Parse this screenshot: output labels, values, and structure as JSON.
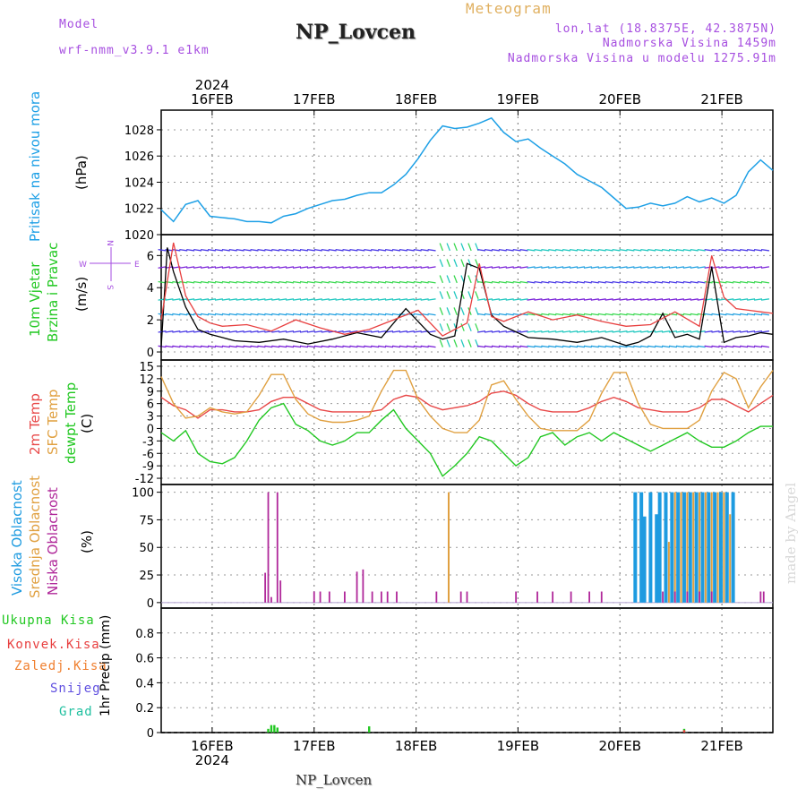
{
  "header": {
    "model_label": "Model",
    "model_name": "wrf-nmm_v3.9.1  e1km",
    "title": "NP_Lovcen",
    "meteogram": "Meteogram",
    "lonlat": "lon,lat (18.8375E, 42.3875N)",
    "elevation": "Nadmorska Visina 1459m",
    "model_elevation": "Nadmorska Visina u modelu 1275.91m",
    "footer": "NP_Lovcen",
    "watermark": "made by Angel"
  },
  "time_axis": {
    "year": "2024",
    "days": [
      "16FEB",
      "17FEB",
      "18FEB",
      "19FEB",
      "20FEB",
      "21FEB"
    ],
    "day_fractions": [
      0.0833,
      0.25,
      0.4167,
      0.5833,
      0.75,
      0.9167
    ]
  },
  "panels": {
    "pressure": {
      "ylabel": "Pritisak na nivou mora",
      "unit": "(hPa)"
    },
    "wind": {
      "ylabel1": "10m Vjetar",
      "ylabel2": "Brzina i Pravac",
      "unit": "(m/s)",
      "compass_n": "N",
      "compass_s": "S",
      "compass_e": "E",
      "compass_w": "W"
    },
    "temp": {
      "label_2m": "2m Temp",
      "label_sfc": "SFC Temp",
      "label_dew": "dewpt Temp",
      "unit": "(C)"
    },
    "cloud": {
      "label_high": "Visoka Oblacnost",
      "label_mid": "Srednja Oblacnost",
      "label_low": "Niska Oblacnost",
      "unit": "(%)"
    },
    "precip": {
      "label_total": "Ukupna Kisa",
      "label_conv": "Konvek.Kisa",
      "label_frz": "Zaledj.Kisa",
      "label_snow": "Snijeg",
      "label_grad": "Grad",
      "unit": "1hr Precip (mm)"
    }
  },
  "colors": {
    "pressure": "#1ea0e6",
    "wind_speed": "#000000",
    "wind_gust": "#e84040",
    "t2m": "#e84848",
    "tsfc": "#e0a040",
    "dew": "#22c822",
    "high": "#1e9be0",
    "mid": "#e0a040",
    "low": "#b0289a",
    "total": "#22c822",
    "conv": "#e84040",
    "frz": "#f08030",
    "snow": "#6050e0",
    "grad": "#20c0a0"
  },
  "chart_data": [
    {
      "type": "line",
      "name": "pressure",
      "ylim": [
        1020,
        1029.5
      ],
      "yticks": [
        1020,
        1022,
        1024,
        1026,
        1028
      ],
      "grid": true,
      "x": [
        0.0,
        0.02,
        0.04,
        0.06,
        0.08,
        0.1,
        0.12,
        0.14,
        0.16,
        0.18,
        0.2,
        0.22,
        0.24,
        0.26,
        0.28,
        0.3,
        0.32,
        0.34,
        0.36,
        0.38,
        0.4,
        0.42,
        0.44,
        0.46,
        0.48,
        0.5,
        0.52,
        0.54,
        0.56,
        0.58,
        0.6,
        0.62,
        0.64,
        0.66,
        0.68,
        0.7,
        0.72,
        0.74,
        0.76,
        0.78,
        0.8,
        0.82,
        0.84,
        0.86,
        0.88,
        0.9,
        0.92,
        0.94,
        0.96,
        0.98,
        1.0
      ],
      "values": [
        1021.9,
        1021.0,
        1022.3,
        1022.6,
        1021.4,
        1021.3,
        1021.2,
        1021.0,
        1021.0,
        1020.9,
        1021.4,
        1021.6,
        1022.0,
        1022.3,
        1022.6,
        1022.7,
        1023.0,
        1023.2,
        1023.2,
        1023.8,
        1024.6,
        1025.8,
        1027.2,
        1028.3,
        1028.1,
        1028.2,
        1028.5,
        1028.9,
        1027.8,
        1027.1,
        1027.3,
        1026.6,
        1026.0,
        1025.4,
        1024.6,
        1024.1,
        1023.6,
        1022.8,
        1022.0,
        1022.1,
        1022.4,
        1022.2,
        1022.4,
        1022.9,
        1022.5,
        1022.8,
        1022.4,
        1023.0,
        1024.8,
        1025.7,
        1024.9
      ]
    },
    {
      "type": "line",
      "name": "wind",
      "ylim": [
        -0.5,
        7.3
      ],
      "yticks": [
        0,
        2,
        4,
        6
      ],
      "grid": true,
      "series": [
        {
          "name": "speed",
          "x": [
            0.0,
            0.01,
            0.02,
            0.04,
            0.06,
            0.08,
            0.1,
            0.12,
            0.16,
            0.2,
            0.24,
            0.28,
            0.32,
            0.36,
            0.4,
            0.44,
            0.46,
            0.48,
            0.5,
            0.52,
            0.54,
            0.56,
            0.6,
            0.64,
            0.68,
            0.72,
            0.76,
            0.78,
            0.8,
            0.82,
            0.84,
            0.86,
            0.88,
            0.9,
            0.92,
            0.94,
            0.96,
            0.98,
            1.0
          ],
          "values": [
            0.3,
            6.5,
            5.0,
            2.8,
            1.4,
            1.1,
            0.9,
            0.7,
            0.6,
            0.8,
            0.5,
            0.8,
            1.2,
            0.9,
            2.7,
            1.1,
            0.8,
            1.0,
            5.5,
            5.2,
            2.3,
            1.6,
            0.9,
            0.8,
            0.6,
            0.9,
            0.4,
            0.6,
            1.0,
            2.4,
            0.9,
            1.1,
            0.8,
            5.3,
            0.6,
            0.9,
            1.0,
            1.2,
            1.1
          ]
        },
        {
          "name": "gust",
          "x": [
            0.0,
            0.02,
            0.04,
            0.06,
            0.08,
            0.1,
            0.14,
            0.18,
            0.22,
            0.26,
            0.3,
            0.34,
            0.38,
            0.42,
            0.46,
            0.5,
            0.52,
            0.54,
            0.56,
            0.6,
            0.64,
            0.68,
            0.72,
            0.76,
            0.8,
            0.84,
            0.88,
            0.9,
            0.92,
            0.94,
            0.96,
            0.98,
            1.0
          ],
          "values": [
            2.0,
            6.8,
            3.5,
            2.2,
            1.8,
            1.6,
            1.7,
            1.3,
            2.0,
            1.5,
            1.1,
            1.4,
            2.0,
            2.6,
            1.0,
            1.8,
            5.5,
            2.2,
            1.9,
            2.5,
            2.0,
            2.3,
            1.9,
            1.6,
            1.7,
            2.5,
            1.6,
            6.0,
            3.4,
            2.7,
            2.6,
            2.5,
            2.4
          ]
        }
      ]
    },
    {
      "type": "line",
      "name": "temperature",
      "ylim": [
        -13.5,
        16.5
      ],
      "yticks": [
        -12,
        -9,
        -6,
        -3,
        0,
        3,
        6,
        9,
        12,
        15
      ],
      "grid": true,
      "series": [
        {
          "name": "2m Temp",
          "x": [
            0.0,
            0.02,
            0.04,
            0.06,
            0.08,
            0.1,
            0.12,
            0.14,
            0.16,
            0.18,
            0.2,
            0.22,
            0.24,
            0.26,
            0.28,
            0.3,
            0.32,
            0.34,
            0.36,
            0.38,
            0.4,
            0.42,
            0.44,
            0.46,
            0.48,
            0.5,
            0.52,
            0.54,
            0.56,
            0.58,
            0.6,
            0.62,
            0.64,
            0.66,
            0.68,
            0.7,
            0.72,
            0.74,
            0.76,
            0.78,
            0.8,
            0.82,
            0.84,
            0.86,
            0.88,
            0.9,
            0.92,
            0.94,
            0.96,
            0.98,
            1.0
          ],
          "values": [
            7.5,
            5.5,
            4.5,
            2.5,
            4.5,
            4.5,
            4.0,
            4.0,
            4.5,
            6.5,
            7.5,
            7.5,
            6.0,
            4.5,
            4.0,
            4.0,
            4.0,
            4.0,
            4.5,
            7.0,
            8.0,
            7.5,
            5.5,
            4.5,
            5.0,
            5.5,
            6.5,
            8.5,
            9.0,
            8.0,
            6.0,
            4.5,
            4.0,
            4.0,
            4.0,
            5.0,
            6.5,
            7.5,
            6.5,
            5.0,
            4.5,
            4.0,
            4.0,
            4.0,
            5.0,
            7.0,
            7.0,
            5.5,
            4.0,
            6.0,
            8.0
          ]
        },
        {
          "name": "SFC Temp",
          "x": [
            0.0,
            0.02,
            0.04,
            0.06,
            0.08,
            0.1,
            0.12,
            0.14,
            0.16,
            0.18,
            0.2,
            0.22,
            0.24,
            0.26,
            0.28,
            0.3,
            0.32,
            0.34,
            0.36,
            0.38,
            0.4,
            0.42,
            0.44,
            0.46,
            0.48,
            0.5,
            0.52,
            0.54,
            0.56,
            0.58,
            0.6,
            0.62,
            0.64,
            0.66,
            0.68,
            0.7,
            0.72,
            0.74,
            0.76,
            0.78,
            0.8,
            0.82,
            0.84,
            0.86,
            0.88,
            0.9,
            0.92,
            0.94,
            0.96,
            0.98,
            1.0
          ],
          "values": [
            12.5,
            6.0,
            2.5,
            3.0,
            5.0,
            4.0,
            3.5,
            4.0,
            8.0,
            13.0,
            13.0,
            7.0,
            3.5,
            2.0,
            1.5,
            1.5,
            2.0,
            3.0,
            9.0,
            14.0,
            14.0,
            7.0,
            3.0,
            0.0,
            -1.0,
            -1.0,
            2.0,
            10.5,
            11.5,
            7.0,
            3.0,
            0.0,
            -0.5,
            -0.5,
            -0.5,
            2.0,
            8.5,
            13.5,
            13.5,
            6.0,
            1.0,
            0.0,
            0.0,
            0.0,
            2.0,
            9.0,
            13.5,
            12.0,
            5.0,
            10.0,
            14.0
          ]
        },
        {
          "name": "dewpt Temp",
          "x": [
            0.0,
            0.02,
            0.04,
            0.06,
            0.08,
            0.1,
            0.12,
            0.14,
            0.16,
            0.18,
            0.2,
            0.22,
            0.24,
            0.26,
            0.28,
            0.3,
            0.32,
            0.34,
            0.36,
            0.38,
            0.4,
            0.42,
            0.44,
            0.46,
            0.48,
            0.5,
            0.52,
            0.54,
            0.56,
            0.58,
            0.6,
            0.62,
            0.64,
            0.66,
            0.68,
            0.7,
            0.72,
            0.74,
            0.76,
            0.78,
            0.8,
            0.82,
            0.84,
            0.86,
            0.88,
            0.9,
            0.92,
            0.94,
            0.96,
            0.98,
            1.0
          ],
          "values": [
            -1.0,
            -3.0,
            -0.5,
            -6.0,
            -8.0,
            -8.5,
            -7.0,
            -3.0,
            2.0,
            5.0,
            6.0,
            1.0,
            -0.5,
            -3.0,
            -4.0,
            -3.0,
            -1.0,
            -1.0,
            2.0,
            4.5,
            0.0,
            -3.0,
            -6.0,
            -11.5,
            -9.0,
            -6.0,
            -2.0,
            -3.0,
            -6.0,
            -9.0,
            -7.0,
            -2.0,
            -1.0,
            -4.0,
            -2.0,
            -1.0,
            -3.0,
            -1.0,
            -2.5,
            -4.0,
            -5.5,
            -4.0,
            -2.5,
            -1.0,
            -3.0,
            -4.5,
            -4.5,
            -3.0,
            -1.0,
            0.5,
            0.5
          ]
        }
      ]
    },
    {
      "type": "bar",
      "name": "cloud_cover",
      "ylim": [
        -5,
        107
      ],
      "yticks": [
        0,
        25,
        50,
        75,
        100
      ],
      "grid": true,
      "series": [
        {
          "name": "Visoka Oblacnost",
          "x": [
            0.775,
            0.785,
            0.79,
            0.8,
            0.81,
            0.815,
            0.825,
            0.835,
            0.845,
            0.855,
            0.865,
            0.875,
            0.885,
            0.895,
            0.905,
            0.915,
            0.925,
            0.935
          ],
          "values": [
            100,
            100,
            78,
            100,
            80,
            100,
            100,
            100,
            100,
            100,
            100,
            100,
            100,
            100,
            100,
            100,
            100,
            100
          ]
        },
        {
          "name": "Srednja Oblacnost",
          "x": [
            0.47,
            0.83,
            0.84,
            0.85,
            0.86,
            0.87,
            0.88,
            0.89,
            0.9,
            0.91,
            0.92,
            0.93
          ],
          "values": [
            100,
            55,
            100,
            100,
            100,
            100,
            100,
            100,
            100,
            100,
            100,
            80
          ]
        },
        {
          "name": "Niska Oblacnost",
          "x": [
            0.17,
            0.175,
            0.18,
            0.19,
            0.195,
            0.25,
            0.26,
            0.275,
            0.3,
            0.32,
            0.33,
            0.345,
            0.36,
            0.37,
            0.385,
            0.45,
            0.49,
            0.5,
            0.58,
            0.615,
            0.64,
            0.67,
            0.7,
            0.72,
            0.82,
            0.84,
            0.86,
            0.88,
            0.9,
            0.98,
            0.985
          ],
          "values": [
            27,
            100,
            5,
            100,
            20,
            10,
            10,
            10,
            10,
            28,
            30,
            10,
            10,
            10,
            10,
            10,
            10,
            10,
            10,
            10,
            10,
            10,
            10,
            10,
            10,
            10,
            10,
            10,
            10,
            10,
            10
          ]
        }
      ]
    },
    {
      "type": "bar",
      "name": "precipitation",
      "ylim": [
        0,
        1.0
      ],
      "yticks": [
        0,
        0.2,
        0.4,
        0.6,
        0.8
      ],
      "grid": true,
      "series": [
        {
          "name": "Ukupna Kisa",
          "x": [
            0.175,
            0.18,
            0.185,
            0.19,
            0.34,
            0.855
          ],
          "values": [
            0.03,
            0.06,
            0.06,
            0.04,
            0.05,
            0.03
          ]
        },
        {
          "name": "Konvek.Kisa",
          "x": [
            0.855
          ],
          "values": [
            0.02
          ]
        }
      ]
    }
  ]
}
